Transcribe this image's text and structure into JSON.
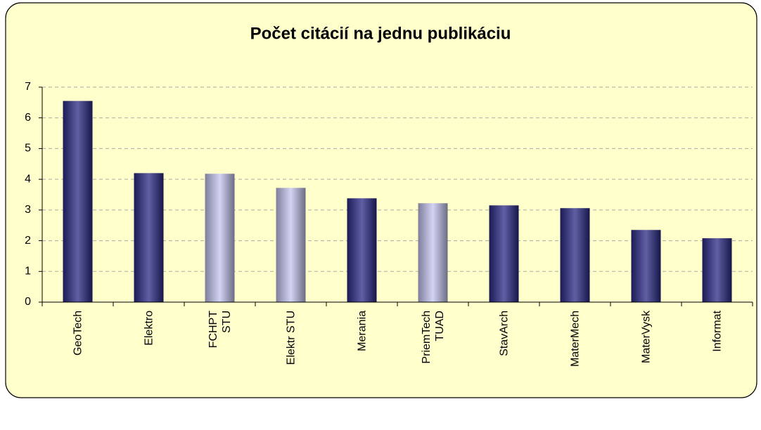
{
  "chart_data": {
    "type": "bar",
    "title": "Počet citácií na jednu publikáciu",
    "categories": [
      "GeoTech",
      "Elektro",
      "FCHPT\nSTU",
      "Elektr STU",
      "Merania",
      "PriemTech\nTUAD",
      "StavArch",
      "MaterMech",
      "MaterVysk",
      "Informat"
    ],
    "values": [
      6.55,
      4.2,
      4.18,
      3.72,
      3.38,
      3.22,
      3.15,
      3.06,
      2.35,
      2.08
    ],
    "colors": [
      "#2a2a86",
      "#2a2a86",
      "#c4c4f0",
      "#c4c4f0",
      "#2a2a86",
      "#c4c4f0",
      "#2a2a86",
      "#2a2a86",
      "#2a2a86",
      "#2a2a86"
    ],
    "ylim": [
      0,
      7
    ],
    "yticks": [
      0,
      1,
      2,
      3,
      4,
      5,
      6,
      7
    ],
    "grid": true
  }
}
